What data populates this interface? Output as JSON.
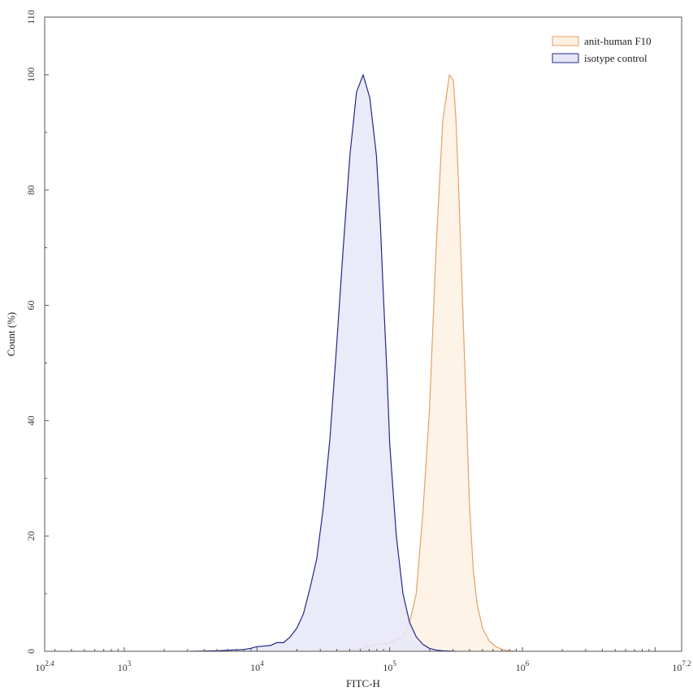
{
  "chart_data": {
    "type": "area",
    "xlabel": "FITC-H",
    "ylabel": "Count (%)",
    "x_scale": "log10",
    "xlim": [
      2.4,
      7.2
    ],
    "ylim": [
      0,
      110
    ],
    "x_ticks": [
      {
        "value": 2.4,
        "base": "10",
        "exp": "2.4"
      },
      {
        "value": 3,
        "base": "10",
        "exp": "3"
      },
      {
        "value": 4,
        "base": "10",
        "exp": "4"
      },
      {
        "value": 5,
        "base": "10",
        "exp": "5"
      },
      {
        "value": 6,
        "base": "10",
        "exp": "6"
      },
      {
        "value": 7.2,
        "base": "10",
        "exp": "7.2"
      }
    ],
    "y_ticks": [
      "0",
      "20",
      "40",
      "60",
      "80",
      "100",
      "110"
    ],
    "grid": false,
    "legend_position": "top-right",
    "series": [
      {
        "name": "anit-human F10",
        "stroke": "#e6a066",
        "fill": "#fdf1e2",
        "x": [
          4.6,
          4.7,
          4.8,
          4.9,
          5.0,
          5.1,
          5.15,
          5.2,
          5.25,
          5.3,
          5.35,
          5.4,
          5.45,
          5.48,
          5.5,
          5.52,
          5.55,
          5.58,
          5.6,
          5.63,
          5.66,
          5.7,
          5.75,
          5.8,
          5.85,
          5.9,
          5.95
        ],
        "y": [
          0,
          0.2,
          0.5,
          1.2,
          1.5,
          2.5,
          5,
          10,
          24,
          42,
          70,
          92,
          100,
          99,
          92,
          80,
          60,
          40,
          26,
          14,
          8,
          4,
          1.8,
          0.8,
          0.3,
          0.1,
          0
        ]
      },
      {
        "name": "isotype control",
        "stroke": "#22288a",
        "fill": "#e6e6f8",
        "x": [
          3.5,
          3.7,
          3.8,
          3.9,
          3.95,
          4.0,
          4.1,
          4.15,
          4.2,
          4.25,
          4.3,
          4.35,
          4.4,
          4.45,
          4.5,
          4.55,
          4.6,
          4.65,
          4.7,
          4.75,
          4.8,
          4.85,
          4.9,
          4.93,
          4.95,
          4.98,
          5.0,
          5.05,
          5.1,
          5.15,
          5.2,
          5.25,
          5.3,
          5.35,
          5.4,
          5.5
        ],
        "y": [
          0,
          0.1,
          0.2,
          0.3,
          0.5,
          0.8,
          1,
          1.5,
          1.5,
          2.5,
          4,
          6.5,
          11,
          16,
          25,
          37,
          53,
          70,
          86,
          97,
          100,
          96,
          86,
          74,
          63,
          48,
          36,
          20,
          10,
          5,
          2.5,
          1.2,
          0.5,
          0.2,
          0.1,
          0
        ]
      }
    ]
  }
}
